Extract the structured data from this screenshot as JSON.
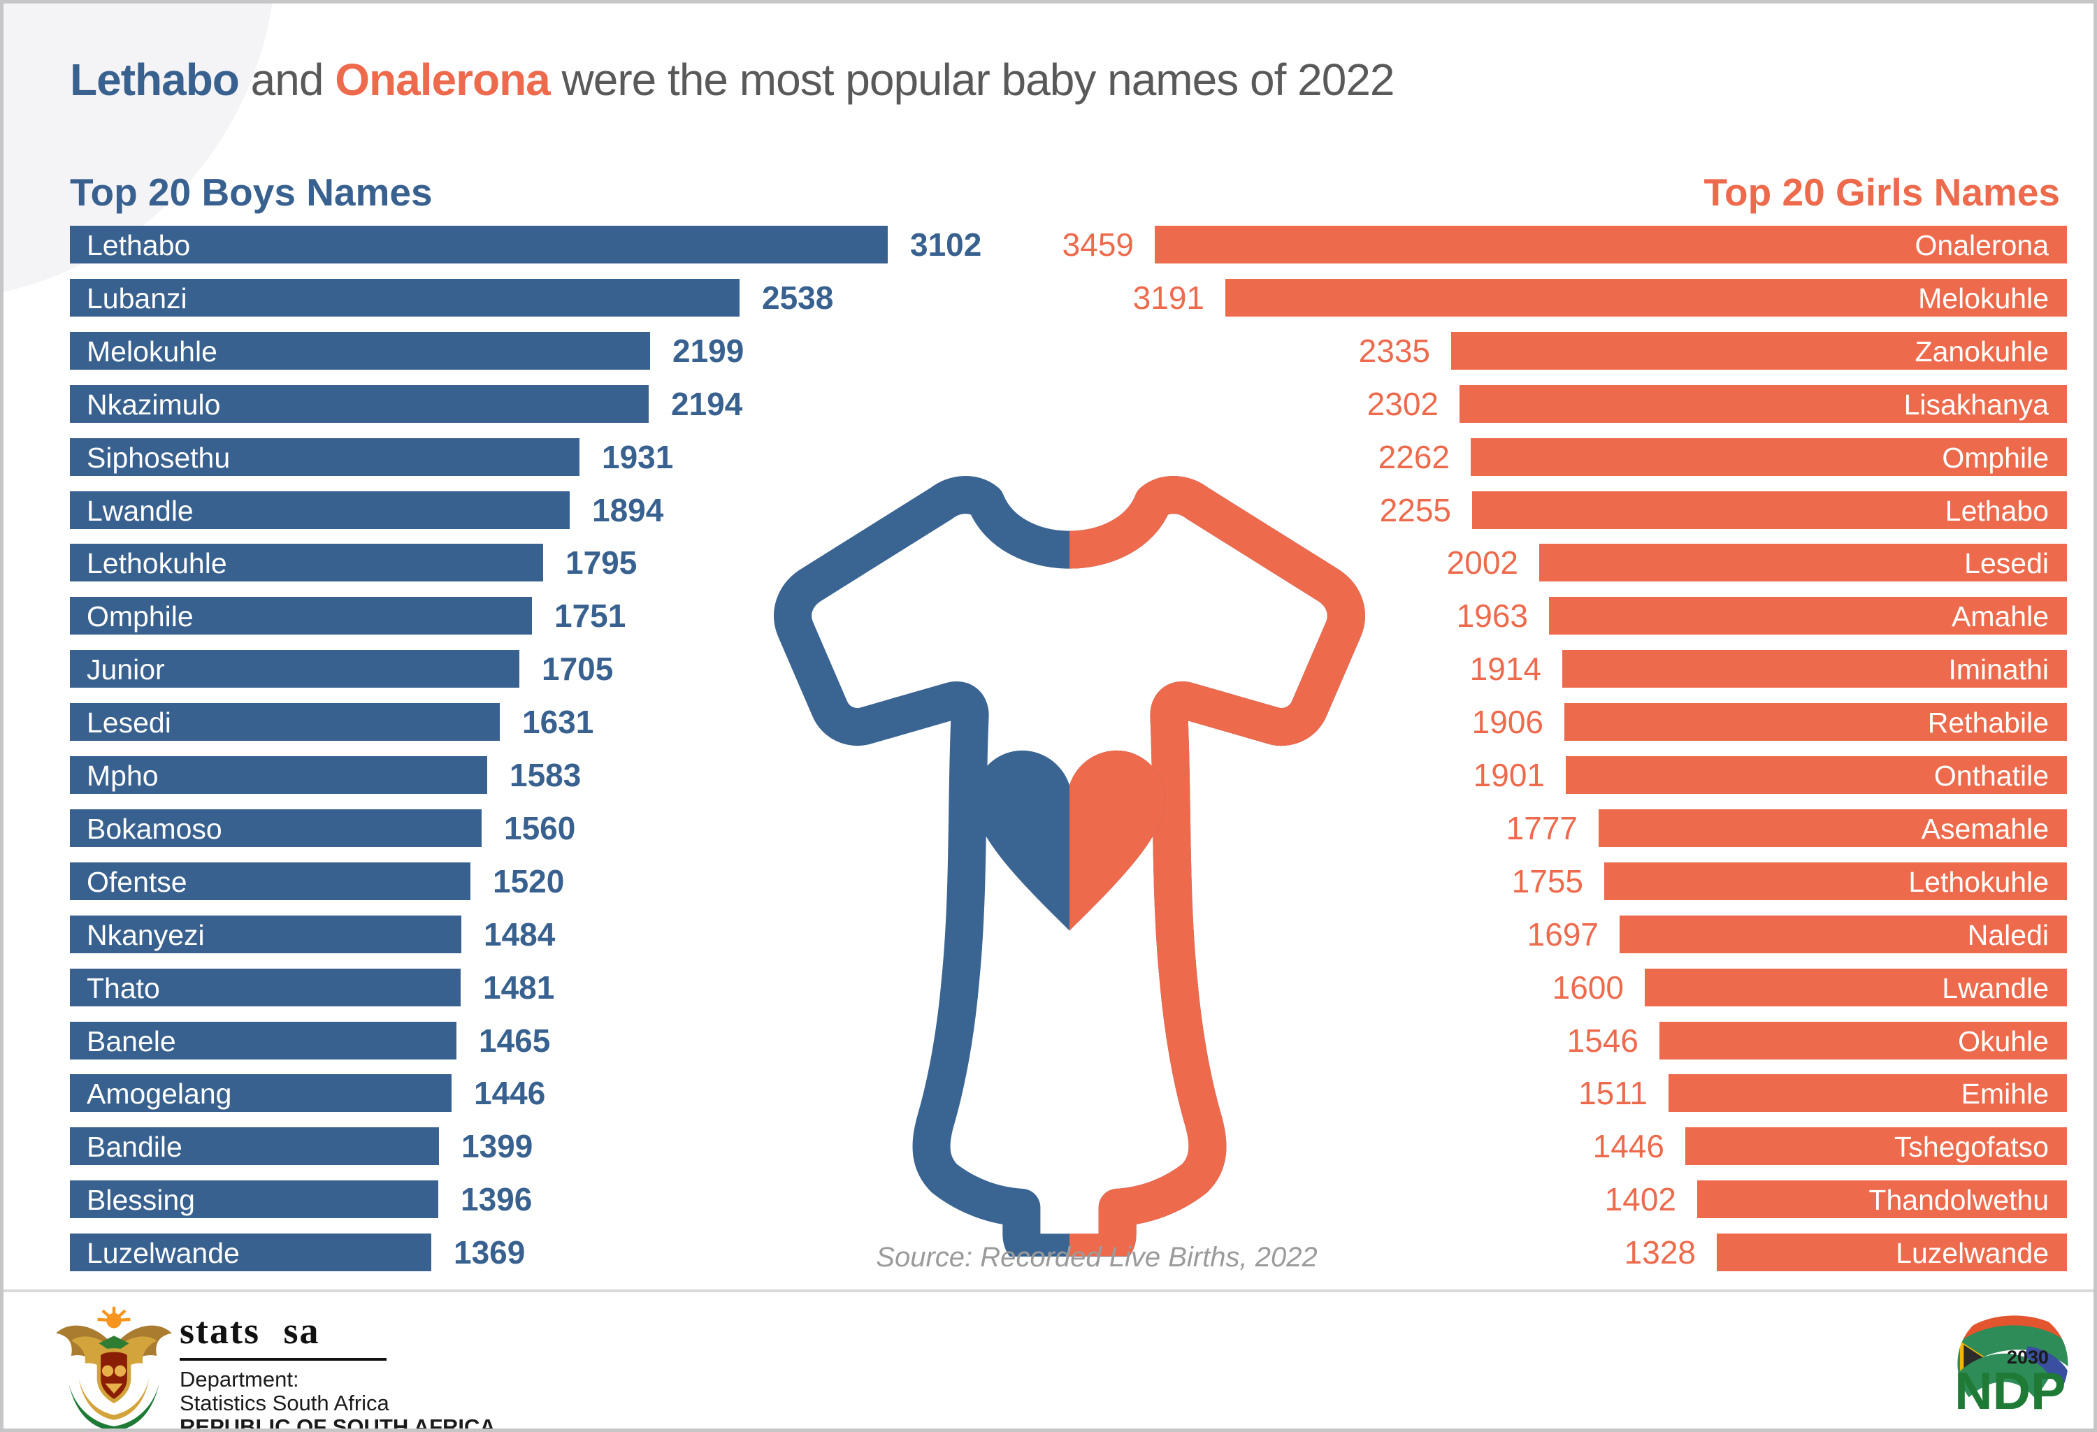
{
  "title": {
    "part1": "Lethabo",
    "part2": " and ",
    "part3": "Onalerona",
    "part4": " were the most popular baby names of 2022"
  },
  "colors": {
    "boys_blue": "#38618F",
    "girls_orange": "#ED6A4C",
    "title_gray": "#595959",
    "source_gray": "#9B9B9B"
  },
  "boys": {
    "header": "Top 20 Boys Names",
    "items": [
      {
        "name": "Lethabo",
        "value": 3102
      },
      {
        "name": "Lubanzi",
        "value": 2538
      },
      {
        "name": "Melokuhle",
        "value": 2199
      },
      {
        "name": "Nkazimulo",
        "value": 2194
      },
      {
        "name": "Siphosethu",
        "value": 1931
      },
      {
        "name": "Lwandle",
        "value": 1894
      },
      {
        "name": "Lethokuhle",
        "value": 1795
      },
      {
        "name": "Omphile",
        "value": 1751
      },
      {
        "name": "Junior",
        "value": 1705
      },
      {
        "name": "Lesedi",
        "value": 1631
      },
      {
        "name": "Mpho",
        "value": 1583
      },
      {
        "name": "Bokamoso",
        "value": 1560
      },
      {
        "name": "Ofentse",
        "value": 1520
      },
      {
        "name": "Nkanyezi",
        "value": 1484
      },
      {
        "name": "Thato",
        "value": 1481
      },
      {
        "name": "Banele",
        "value": 1465
      },
      {
        "name": "Amogelang",
        "value": 1446
      },
      {
        "name": "Bandile",
        "value": 1399
      },
      {
        "name": "Blessing",
        "value": 1396
      },
      {
        "name": "Luzelwande",
        "value": 1369
      }
    ]
  },
  "girls": {
    "header": "Top 20 Girls Names",
    "items": [
      {
        "name": "Onalerona",
        "value": 3459
      },
      {
        "name": "Melokuhle",
        "value": 3191
      },
      {
        "name": "Zanokuhle",
        "value": 2335
      },
      {
        "name": "Lisakhanya",
        "value": 2302
      },
      {
        "name": "Omphile",
        "value": 2262
      },
      {
        "name": "Lethabo",
        "value": 2255
      },
      {
        "name": "Lesedi",
        "value": 2002
      },
      {
        "name": "Amahle",
        "value": 1963
      },
      {
        "name": "Iminathi",
        "value": 1914
      },
      {
        "name": "Rethabile",
        "value": 1906
      },
      {
        "name": "Onthatile",
        "value": 1901
      },
      {
        "name": "Asemahle",
        "value": 1777
      },
      {
        "name": "Lethokuhle",
        "value": 1755
      },
      {
        "name": "Naledi",
        "value": 1697
      },
      {
        "name": "Lwandle",
        "value": 1600
      },
      {
        "name": "Okuhle",
        "value": 1546
      },
      {
        "name": "Emihle",
        "value": 1511
      },
      {
        "name": "Tshegofatso",
        "value": 1446
      },
      {
        "name": "Thandolwethu",
        "value": 1402
      },
      {
        "name": "Luzelwande",
        "value": 1328
      }
    ]
  },
  "source": "Source: Recorded Live Births, 2022",
  "footer": {
    "stats_sa": {
      "brand": "stats sa",
      "dept_line1": "Department:",
      "dept_line2": "Statistics South Africa",
      "dept_line3": "REPUBLIC OF SOUTH AFRICA"
    },
    "ndp": {
      "label": "NDP",
      "year": "2030"
    }
  },
  "chart_data": [
    {
      "type": "bar",
      "orientation": "horizontal",
      "title": "Top 20 Boys Names",
      "color": "#38618F",
      "categories": [
        "Lethabo",
        "Lubanzi",
        "Melokuhle",
        "Nkazimulo",
        "Siphosethu",
        "Lwandle",
        "Lethokuhle",
        "Omphile",
        "Junior",
        "Lesedi",
        "Mpho",
        "Bokamoso",
        "Ofentse",
        "Nkanyezi",
        "Thato",
        "Banele",
        "Amogelang",
        "Bandile",
        "Blessing",
        "Luzelwande"
      ],
      "values": [
        3102,
        2538,
        2199,
        2194,
        1931,
        1894,
        1795,
        1751,
        1705,
        1631,
        1583,
        1560,
        1520,
        1484,
        1481,
        1465,
        1446,
        1399,
        1396,
        1369
      ],
      "xlim": [
        0,
        3500
      ],
      "value_labels": "outside-end",
      "grid": false
    },
    {
      "type": "bar",
      "orientation": "horizontal",
      "title": "Top 20 Girls Names",
      "color": "#ED6A4C",
      "categories": [
        "Onalerona",
        "Melokuhle",
        "Zanokuhle",
        "Lisakhanya",
        "Omphile",
        "Lethabo",
        "Lesedi",
        "Amahle",
        "Iminathi",
        "Rethabile",
        "Onthatile",
        "Asemahle",
        "Lethokuhle",
        "Naledi",
        "Lwandle",
        "Okuhle",
        "Emihle",
        "Tshegofatso",
        "Thandolwethu",
        "Luzelwande"
      ],
      "values": [
        3459,
        3191,
        2335,
        2302,
        2262,
        2255,
        2002,
        1963,
        1914,
        1906,
        1901,
        1777,
        1755,
        1697,
        1600,
        1546,
        1511,
        1446,
        1402,
        1328
      ],
      "xlim": [
        0,
        3500
      ],
      "value_labels": "outside-end",
      "bars_anchored": "right",
      "grid": false
    }
  ]
}
